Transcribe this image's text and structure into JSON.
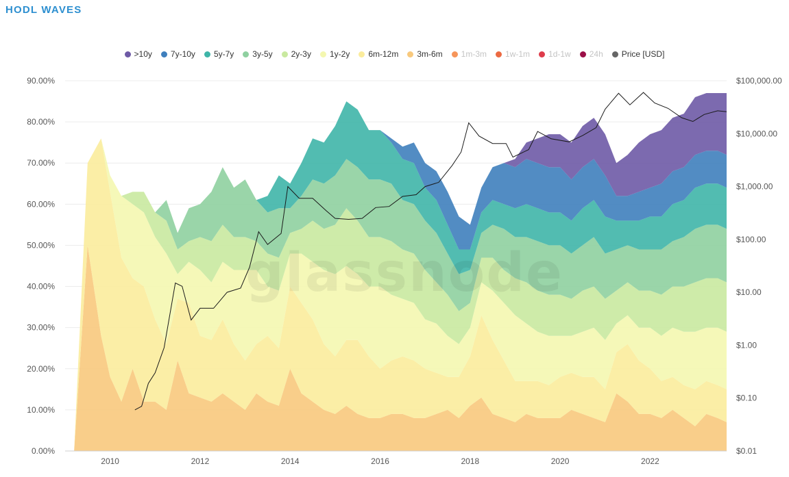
{
  "title": "HODL WAVES",
  "watermark": "glassnode",
  "legend": [
    {
      "label": ">10y",
      "color": "#6e5aa6",
      "enabled": true
    },
    {
      "label": "7y-10y",
      "color": "#3f7fbd",
      "enabled": true
    },
    {
      "label": "5y-7y",
      "color": "#3fb5a8",
      "enabled": true
    },
    {
      "label": "3y-5y",
      "color": "#8fd0a0",
      "enabled": true
    },
    {
      "label": "2y-3y",
      "color": "#c9e9a0",
      "enabled": true
    },
    {
      "label": "1y-2y",
      "color": "#f4f7b0",
      "enabled": true
    },
    {
      "label": "6m-12m",
      "color": "#fbec9c",
      "enabled": true
    },
    {
      "label": "3m-6m",
      "color": "#f8c97d",
      "enabled": true
    },
    {
      "label": "1m-3m",
      "color": "#f6955a",
      "enabled": false
    },
    {
      "label": "1w-1m",
      "color": "#ec6a42",
      "enabled": false
    },
    {
      "label": "1d-1w",
      "color": "#de3c4b",
      "enabled": false
    },
    {
      "label": "24h",
      "color": "#9b0f47",
      "enabled": false
    },
    {
      "label": "Price [USD]",
      "color": "#666666",
      "enabled": true
    }
  ],
  "chart_data": {
    "type": "area",
    "stacked": true,
    "title": "HODL WAVES",
    "x_label": "",
    "y_label": "",
    "x_ticks": [
      "2010",
      "2012",
      "2014",
      "2016",
      "2018",
      "2020",
      "2022"
    ],
    "y_left_ticks": [
      "0.00%",
      "10.00%",
      "20.00%",
      "30.00%",
      "40.00%",
      "50.00%",
      "60.00%",
      "70.00%",
      "80.00%",
      "90.00%"
    ],
    "y_right_ticks": [
      "$0.01",
      "$0.10",
      "$1.00",
      "$10.00",
      "$100.00",
      "$1,000.00",
      "$10,000.00",
      "$100,000.00"
    ],
    "y_left_range": [
      0,
      90
    ],
    "y_right_scale": "log",
    "y_right_range": [
      0.01,
      100000
    ],
    "x_range": [
      2009.0,
      2023.7
    ],
    "grid": true,
    "legend_position": "top",
    "x": [
      2009.2,
      2009.5,
      2009.8,
      2010.0,
      2010.25,
      2010.5,
      2010.75,
      2011.0,
      2011.25,
      2011.5,
      2011.75,
      2012.0,
      2012.25,
      2012.5,
      2012.75,
      2013.0,
      2013.25,
      2013.5,
      2013.75,
      2014.0,
      2014.25,
      2014.5,
      2014.75,
      2015.0,
      2015.25,
      2015.5,
      2015.75,
      2016.0,
      2016.25,
      2016.5,
      2016.75,
      2017.0,
      2017.25,
      2017.5,
      2017.75,
      2018.0,
      2018.25,
      2018.5,
      2018.75,
      2019.0,
      2019.25,
      2019.5,
      2019.75,
      2020.0,
      2020.25,
      2020.5,
      2020.75,
      2021.0,
      2021.25,
      2021.5,
      2021.75,
      2022.0,
      2022.25,
      2022.5,
      2022.75,
      2023.0,
      2023.25,
      2023.5,
      2023.7
    ],
    "series": [
      {
        "name": "3m-6m",
        "values": [
          0,
          50,
          28,
          18,
          12,
          20,
          12,
          12,
          10,
          22,
          14,
          13,
          12,
          14,
          12,
          10,
          14,
          12,
          11,
          20,
          14,
          12,
          10,
          9,
          11,
          9,
          8,
          8,
          9,
          9,
          8,
          8,
          9,
          10,
          8,
          11,
          13,
          9,
          8,
          7,
          9,
          8,
          8,
          8,
          10,
          9,
          8,
          7,
          14,
          12,
          9,
          9,
          8,
          10,
          8,
          6,
          9,
          8,
          7
        ]
      },
      {
        "name": "6m-12m",
        "values": [
          0,
          20,
          48,
          45,
          35,
          22,
          28,
          20,
          16,
          15,
          22,
          15,
          15,
          18,
          14,
          12,
          12,
          16,
          14,
          20,
          22,
          20,
          16,
          14,
          16,
          18,
          15,
          12,
          13,
          14,
          14,
          12,
          10,
          8,
          10,
          12,
          20,
          18,
          14,
          10,
          8,
          9,
          8,
          10,
          9,
          9,
          10,
          8,
          10,
          14,
          13,
          11,
          9,
          8,
          8,
          9,
          8,
          8,
          8
        ]
      },
      {
        "name": "1y-2y",
        "values": [
          0,
          0,
          0,
          4,
          15,
          18,
          18,
          20,
          22,
          6,
          10,
          16,
          14,
          14,
          18,
          22,
          18,
          12,
          14,
          8,
          12,
          14,
          18,
          20,
          18,
          16,
          17,
          20,
          16,
          14,
          14,
          12,
          12,
          10,
          8,
          7,
          8,
          12,
          14,
          16,
          14,
          12,
          12,
          10,
          9,
          11,
          12,
          12,
          7,
          7,
          8,
          10,
          11,
          12,
          13,
          14,
          13,
          14,
          14
        ]
      },
      {
        "name": "2y-3y",
        "values": [
          0,
          0,
          0,
          0,
          0,
          3,
          5,
          6,
          8,
          6,
          5,
          8,
          10,
          9,
          8,
          8,
          7,
          8,
          8,
          5,
          6,
          10,
          10,
          12,
          14,
          13,
          12,
          12,
          13,
          12,
          12,
          12,
          10,
          10,
          8,
          6,
          6,
          8,
          8,
          9,
          10,
          10,
          10,
          10,
          9,
          10,
          10,
          10,
          8,
          8,
          9,
          9,
          10,
          10,
          11,
          12,
          12,
          12,
          12
        ]
      },
      {
        "name": "3y-5y",
        "values": [
          0,
          0,
          0,
          0,
          0,
          0,
          0,
          0,
          5,
          4,
          8,
          8,
          12,
          14,
          12,
          14,
          10,
          10,
          12,
          6,
          8,
          10,
          11,
          12,
          12,
          13,
          14,
          14,
          14,
          12,
          12,
          12,
          12,
          10,
          9,
          8,
          6,
          8,
          10,
          10,
          11,
          12,
          12,
          12,
          11,
          11,
          12,
          11,
          10,
          9,
          10,
          10,
          11,
          11,
          12,
          13,
          13,
          13,
          13
        ]
      },
      {
        "name": "5y-7y",
        "values": [
          0,
          0,
          0,
          0,
          0,
          0,
          0,
          0,
          0,
          0,
          0,
          0,
          0,
          0,
          0,
          0,
          0,
          4,
          8,
          6,
          8,
          10,
          10,
          12,
          14,
          14,
          12,
          12,
          10,
          10,
          10,
          8,
          8,
          7,
          6,
          5,
          5,
          6,
          6,
          7,
          8,
          8,
          8,
          8,
          8,
          9,
          9,
          9,
          7,
          6,
          7,
          8,
          8,
          9,
          9,
          10,
          10,
          10,
          10
        ]
      },
      {
        "name": "7y-10y",
        "values": [
          0,
          0,
          0,
          0,
          0,
          0,
          0,
          0,
          0,
          0,
          0,
          0,
          0,
          0,
          0,
          0,
          0,
          0,
          0,
          0,
          0,
          0,
          0,
          0,
          0,
          0,
          0,
          0,
          1,
          3,
          5,
          6,
          7,
          8,
          8,
          6,
          6,
          8,
          10,
          10,
          11,
          11,
          11,
          11,
          10,
          10,
          10,
          10,
          6,
          6,
          7,
          7,
          8,
          8,
          8,
          8,
          8,
          8,
          8
        ]
      },
      {
        "name": ">10y",
        "values": [
          0,
          0,
          0,
          0,
          0,
          0,
          0,
          0,
          0,
          0,
          0,
          0,
          0,
          0,
          0,
          0,
          0,
          0,
          0,
          0,
          0,
          0,
          0,
          0,
          0,
          0,
          0,
          0,
          0,
          0,
          0,
          0,
          0,
          0,
          0,
          0,
          0,
          0,
          0,
          2,
          4,
          6,
          8,
          8,
          9,
          10,
          10,
          10,
          8,
          10,
          12,
          13,
          13,
          13,
          13,
          14,
          14,
          14,
          15
        ]
      }
    ],
    "price": {
      "name": "Price [USD]",
      "x": [
        2010.55,
        2010.7,
        2010.85,
        2011.0,
        2011.2,
        2011.45,
        2011.6,
        2011.8,
        2012.0,
        2012.3,
        2012.6,
        2012.9,
        2013.1,
        2013.3,
        2013.5,
        2013.8,
        2013.95,
        2014.2,
        2014.5,
        2014.8,
        2015.0,
        2015.3,
        2015.6,
        2015.9,
        2016.2,
        2016.5,
        2016.8,
        2017.0,
        2017.3,
        2017.6,
        2017.8,
        2017.97,
        2018.2,
        2018.5,
        2018.8,
        2018.95,
        2019.3,
        2019.5,
        2019.8,
        2020.2,
        2020.5,
        2020.8,
        2021.0,
        2021.3,
        2021.55,
        2021.85,
        2022.1,
        2022.4,
        2022.7,
        2022.95,
        2023.2,
        2023.5,
        2023.7
      ],
      "values": [
        0.06,
        0.07,
        0.19,
        0.3,
        0.9,
        15,
        13,
        3,
        5,
        5,
        10,
        12,
        30,
        140,
        80,
        130,
        1000,
        600,
        600,
        350,
        250,
        240,
        250,
        400,
        420,
        650,
        700,
        1000,
        1200,
        2500,
        4500,
        16000,
        9000,
        6500,
        6500,
        3600,
        5000,
        11000,
        8000,
        7000,
        9200,
        13000,
        29000,
        58000,
        35000,
        60000,
        38000,
        30000,
        20000,
        17000,
        23000,
        27000,
        26000
      ]
    }
  }
}
